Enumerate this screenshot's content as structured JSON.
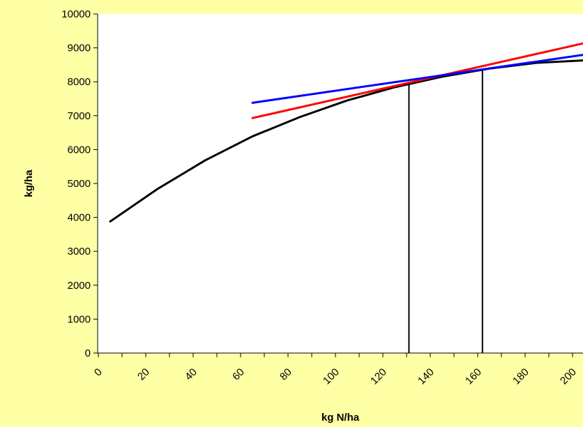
{
  "chart_data": {
    "type": "line",
    "title": "",
    "xlabel": "kg N/ha",
    "ylabel": "kg/ha",
    "xlim": [
      0,
      205
    ],
    "ylim": [
      0,
      10000
    ],
    "x_ticks": [
      0,
      20,
      40,
      60,
      80,
      100,
      120,
      140,
      160,
      180,
      200
    ],
    "y_ticks": [
      0,
      1000,
      2000,
      3000,
      4000,
      5000,
      6000,
      7000,
      8000,
      9000,
      10000
    ],
    "grid": false,
    "legend": "none",
    "series": [
      {
        "color": "#000000",
        "x": [
          5,
          25,
          45,
          65,
          85,
          105,
          125,
          145,
          165,
          185,
          205
        ],
        "y": [
          3880,
          4840,
          5680,
          6390,
          6960,
          7450,
          7840,
          8150,
          8390,
          8560,
          8630
        ]
      },
      {
        "color": "#FF0000",
        "x": [
          65,
          205
        ],
        "y": [
          6930,
          9140
        ]
      },
      {
        "color": "#0000FF",
        "x": [
          65,
          205
        ],
        "y": [
          7380,
          8800
        ]
      }
    ],
    "vertical_lines": [
      {
        "x": 131,
        "y_top": 7960,
        "color": "#000000"
      },
      {
        "x": 162,
        "y_top": 8360,
        "color": "#000000"
      }
    ]
  }
}
